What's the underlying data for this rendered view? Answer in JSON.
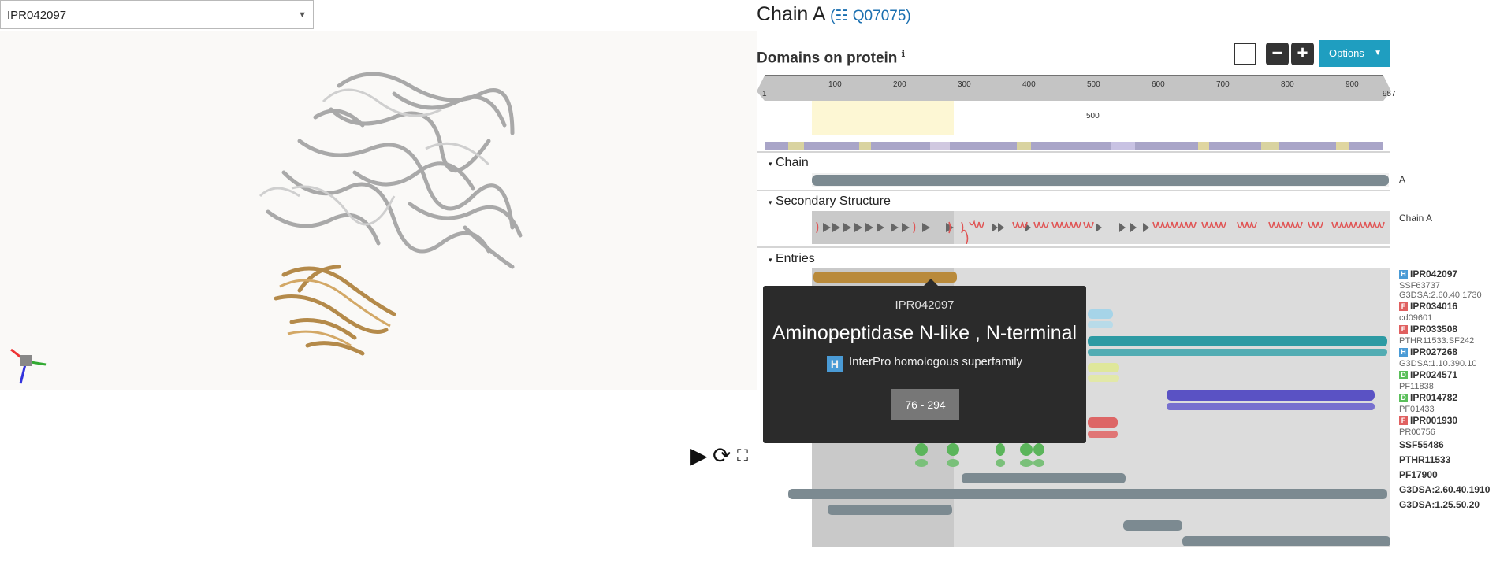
{
  "selector": {
    "value": "IPR042097"
  },
  "viewer_controls": {
    "play": "▶",
    "reset": "⟳",
    "fullscreen": "⛶"
  },
  "chain": {
    "title": "Chain A",
    "open_paren": "(",
    "accession": "Q07075",
    "close_paren": ")"
  },
  "domains": {
    "title": "Domains on protein",
    "info_icon": "ℹ",
    "zoom_out": "−",
    "zoom_in": "+",
    "options_label": "Options"
  },
  "ruler": {
    "start": "1",
    "end": "957",
    "ticks": [
      "100",
      "200",
      "300",
      "400",
      "500",
      "600",
      "700",
      "800",
      "900"
    ],
    "selection_label": "500"
  },
  "tracks": {
    "chain_label": "Chain",
    "chain_right": "A",
    "ss_label": "Secondary Structure",
    "ss_right": "Chain A",
    "entries_label": "Entries"
  },
  "entries": [
    {
      "badge": "H",
      "acc": "IPR042097",
      "sub": [
        "SSF63737",
        "G3DSA:2.60.40.1730"
      ]
    },
    {
      "badge": "F",
      "acc": "IPR034016",
      "sub": [
        "cd09601"
      ]
    },
    {
      "badge": "F",
      "acc": "IPR033508",
      "sub": [
        "PTHR11533:SF242"
      ]
    },
    {
      "badge": "H",
      "acc": "IPR027268",
      "sub": [
        "G3DSA:1.10.390.10"
      ]
    },
    {
      "badge": "D",
      "acc": "IPR024571",
      "sub": [
        "PF11838"
      ]
    },
    {
      "badge": "D",
      "acc": "IPR014782",
      "sub": [
        "PF01433"
      ]
    },
    {
      "badge": "F",
      "acc": "IPR001930",
      "sub": [
        "PR00756"
      ]
    }
  ],
  "unintegrated": [
    "SSF55486",
    "PTHR11533",
    "PF17900",
    "G3DSA:2.60.40.1910",
    "G3DSA:1.25.50.20"
  ],
  "tooltip": {
    "id": "IPR042097",
    "name": "Aminopeptidase N-like , N-terminal",
    "type_badge": "H",
    "type": "InterPro homologous superfamily",
    "range": "76 - 294"
  },
  "colors": {
    "accent": "#1f9ec0",
    "highlight_domain": "#b98a3b",
    "chain_bar": "#7c8a91"
  }
}
